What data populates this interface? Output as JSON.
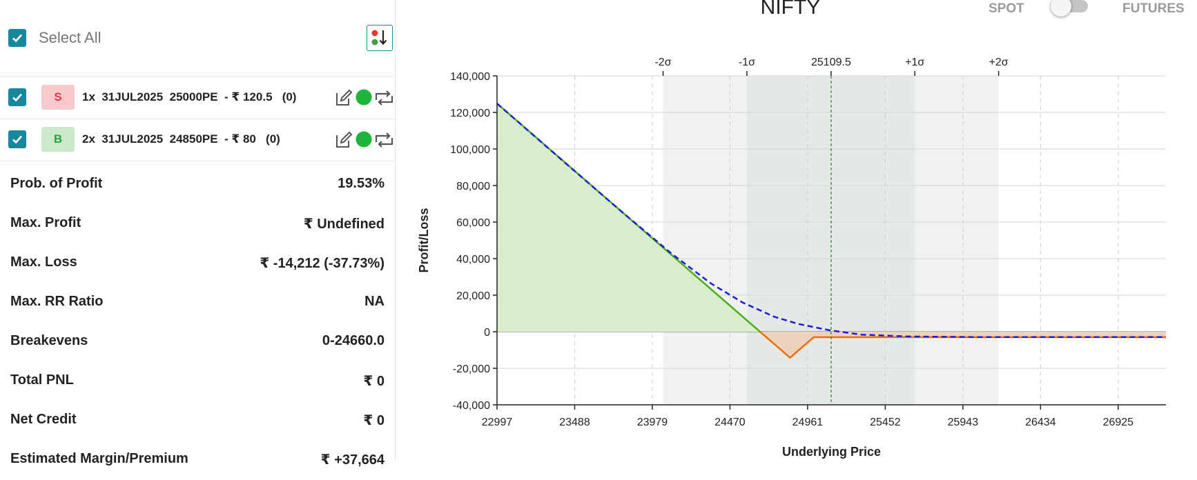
{
  "selection": {
    "select_all_label": "Select All",
    "checked": true
  },
  "legs": [
    {
      "side": "S",
      "text": "1x  31JUL2025  25000PE  - ₹ 120.5   (0)",
      "badge_bg": "#f8c9cb",
      "badge_fg": "#e0383e"
    },
    {
      "side": "B",
      "text": "2x  31JUL2025  24850PE  - ₹ 80   (0)",
      "badge_bg": "#c9e9c9",
      "badge_fg": "#2f9e3f"
    }
  ],
  "stats": [
    {
      "label": "Prob. of Profit",
      "value": "19.53%"
    },
    {
      "label": "Max. Profit",
      "value": "₹ Undefined"
    },
    {
      "label": "Max. Loss",
      "value": "₹ -14,212 (-37.73%)"
    },
    {
      "label": "Max. RR Ratio",
      "value": "NA"
    },
    {
      "label": "Breakevens",
      "value": "0-24660.0"
    },
    {
      "label": "Total PNL",
      "value": "₹ 0"
    },
    {
      "label": "Net Credit",
      "value": "₹ 0"
    },
    {
      "label": "Estimated Margin/Premium",
      "value": "₹ +37,664"
    }
  ],
  "header": {
    "title": "NIFTY",
    "spot_label": "SPOT",
    "futures_label": "FUTURES",
    "futures_selected": false
  },
  "colors": {
    "accent": "#17879b",
    "profit_fill": "#d7edcb",
    "loss_fill": "#ecd3c0",
    "expiry_profit_line": "#4caf1a",
    "expiry_loss_line": "#ef6c00",
    "target_line": "#1c1cd6",
    "live_indicator": "#1eb53a"
  },
  "icons": [
    "checkbox-checked-icon",
    "sort-icon",
    "edit-icon",
    "live-dot-icon",
    "swap-icon"
  ],
  "chart_data": {
    "type": "line",
    "xlabel": "Underlying Price",
    "ylabel": "Profit/Loss",
    "xlim": [
      22997,
      27227
    ],
    "ylim": [
      -40000,
      140000
    ],
    "x_ticks": [
      22997,
      23488,
      23979,
      24470,
      24961,
      25452,
      25943,
      26434,
      26925
    ],
    "y_ticks": [
      -40000,
      -20000,
      0,
      20000,
      40000,
      60000,
      80000,
      100000,
      120000,
      140000
    ],
    "y_tick_labels": [
      "-40,000",
      "-20,000",
      "0",
      "20,000",
      "40,000",
      "60,000",
      "80,000",
      "100,000",
      "120,000",
      "140,000"
    ],
    "spot": {
      "value": 25109.5,
      "label": "25109.5"
    },
    "sigma_lines": [
      {
        "label": "-2σ",
        "x": 24047
      },
      {
        "label": "-1σ",
        "x": 24577
      },
      {
        "label": "+1σ",
        "x": 25639
      },
      {
        "label": "+2σ",
        "x": 26169
      }
    ],
    "series": [
      {
        "style": "solid",
        "points": [
          [
            22997,
            124872
          ],
          [
            24660,
            0
          ],
          [
            24850,
            -14212
          ],
          [
            25000,
            -2962
          ],
          [
            27227,
            -2962
          ]
        ]
      },
      {
        "style": "dashed",
        "points": [
          [
            22997,
            124872
          ],
          [
            23400,
            94500
          ],
          [
            23800,
            64600
          ],
          [
            24100,
            42800
          ],
          [
            24350,
            26400
          ],
          [
            24550,
            16000
          ],
          [
            24750,
            8200
          ],
          [
            24900,
            4300
          ],
          [
            25100,
            800
          ],
          [
            25300,
            -1600
          ],
          [
            25600,
            -2600
          ],
          [
            26000,
            -2900
          ],
          [
            27227,
            -2962
          ]
        ]
      }
    ]
  }
}
